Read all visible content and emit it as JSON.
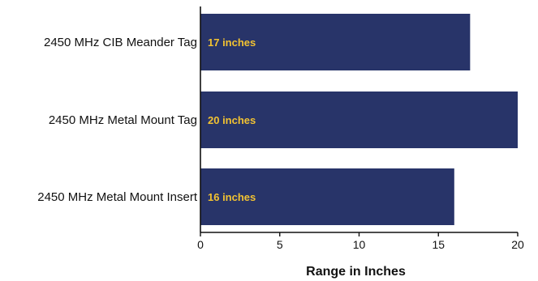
{
  "chart_data": {
    "type": "bar",
    "orientation": "horizontal",
    "categories": [
      "2450 MHz CIB Meander Tag",
      "2450 MHz Metal Mount Tag",
      "2450 MHz Metal Mount Insert"
    ],
    "values": [
      17,
      20,
      16
    ],
    "data_labels": [
      "17 inches",
      "20 inches",
      "16 inches"
    ],
    "xlabel": "Range in Inches",
    "ylabel": "",
    "title": "",
    "xlim": [
      0,
      20
    ],
    "x_ticks": [
      "0",
      "5",
      "10",
      "15",
      "20"
    ],
    "grid": false,
    "legend": "none",
    "colors": {
      "bar": "#283469",
      "data_label": "#f2c232",
      "axis": "#111111"
    }
  }
}
